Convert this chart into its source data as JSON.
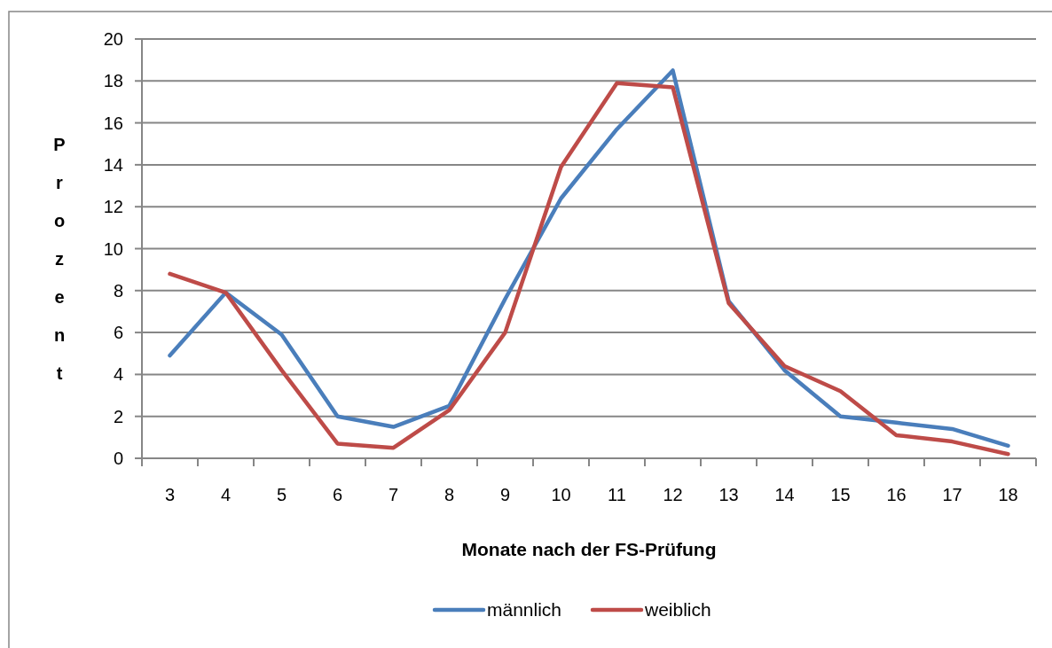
{
  "chart_data": {
    "type": "line",
    "xlabel": "Monate nach der FS-Prüfung",
    "ylabel": "Prozent",
    "categories": [
      "3",
      "4",
      "5",
      "6",
      "7",
      "8",
      "9",
      "10",
      "11",
      "12",
      "13",
      "14",
      "15",
      "16",
      "17",
      "18"
    ],
    "series": [
      {
        "name": "männlich",
        "color": "#4a7ebb",
        "values": [
          4.9,
          7.9,
          5.9,
          2.0,
          1.5,
          2.5,
          7.6,
          12.4,
          15.7,
          18.5,
          7.5,
          4.2,
          2.0,
          1.7,
          1.4,
          0.6
        ]
      },
      {
        "name": "weiblich",
        "color": "#be4b48",
        "values": [
          8.8,
          7.9,
          4.2,
          0.7,
          0.5,
          2.3,
          6.0,
          13.9,
          17.9,
          17.7,
          7.4,
          4.4,
          3.2,
          1.1,
          0.8,
          0.2
        ]
      }
    ],
    "ylim": [
      0,
      20
    ],
    "yticks": [
      0,
      2,
      4,
      6,
      8,
      10,
      12,
      14,
      16,
      18,
      20
    ],
    "grid": "y",
    "legend": "bottom",
    "marker": "none",
    "line_style": "solid"
  }
}
